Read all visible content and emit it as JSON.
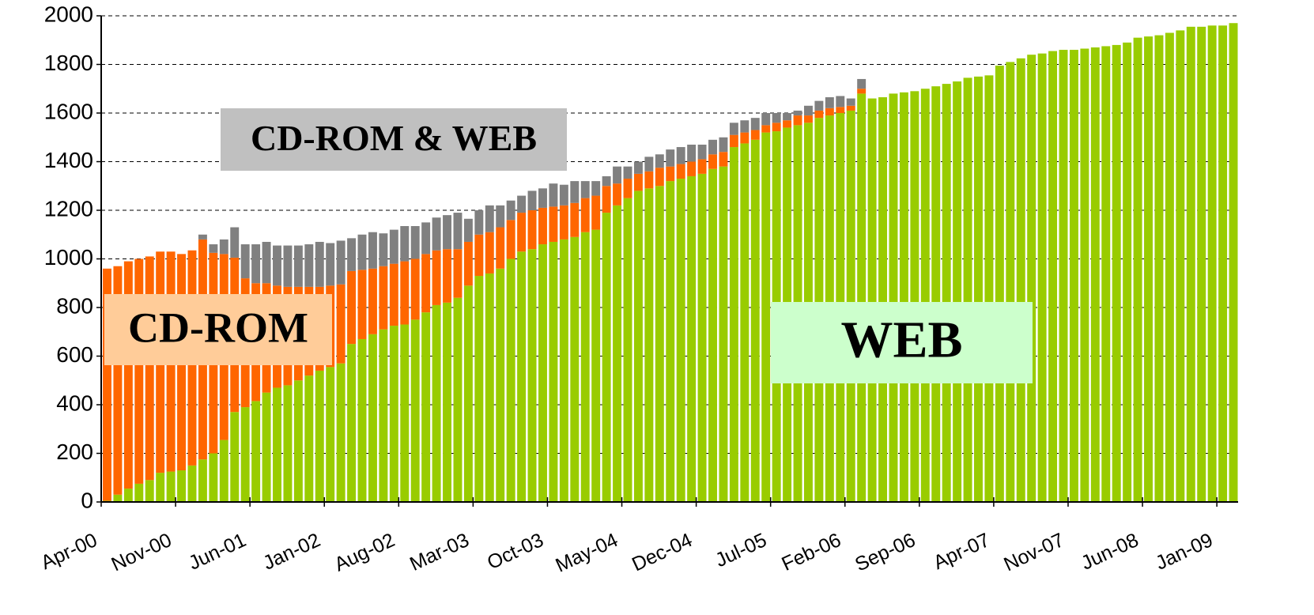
{
  "chart_data": {
    "type": "stacked_bar",
    "categories": [
      "Apr-00",
      null,
      null,
      null,
      null,
      null,
      null,
      "Nov-00",
      null,
      null,
      null,
      null,
      null,
      null,
      "Jun-01",
      null,
      null,
      null,
      null,
      null,
      null,
      "Jan-02",
      null,
      null,
      null,
      null,
      null,
      null,
      "Aug-02",
      null,
      null,
      null,
      null,
      null,
      null,
      "Mar-03",
      null,
      null,
      null,
      null,
      null,
      null,
      "Oct-03",
      null,
      null,
      null,
      null,
      null,
      null,
      "May-04",
      null,
      null,
      null,
      null,
      null,
      null,
      "Dec-04",
      null,
      null,
      null,
      null,
      null,
      null,
      "Jul-05",
      null,
      null,
      null,
      null,
      null,
      null,
      "Feb-06",
      null,
      null,
      null,
      null,
      null,
      null,
      "Sep-06",
      null,
      null,
      null,
      null,
      null,
      null,
      "Apr-07",
      null,
      null,
      null,
      null,
      null,
      null,
      "Nov-07",
      null,
      null,
      null,
      null,
      null,
      null,
      "Jun-08",
      null,
      null,
      null,
      null,
      null,
      null,
      "Jan-09",
      null
    ],
    "series": [
      {
        "name": "WEB",
        "color": "#99cc00",
        "box_color": "#ccffcc",
        "values": [
          5,
          30,
          55,
          75,
          90,
          120,
          125,
          130,
          150,
          175,
          200,
          255,
          370,
          390,
          415,
          450,
          470,
          480,
          500,
          520,
          540,
          555,
          570,
          650,
          670,
          690,
          710,
          725,
          730,
          750,
          780,
          810,
          820,
          840,
          890,
          930,
          940,
          960,
          1000,
          1030,
          1040,
          1060,
          1070,
          1080,
          1090,
          1110,
          1120,
          1190,
          1220,
          1250,
          1280,
          1290,
          1300,
          1320,
          1330,
          1340,
          1350,
          1370,
          1380,
          1460,
          1475,
          1490,
          1520,
          1525,
          1540,
          1550,
          1560,
          1580,
          1590,
          1600,
          1610,
          1680,
          1660,
          1665,
          1680,
          1685,
          1690,
          1700,
          1710,
          1720,
          1730,
          1745,
          1750,
          1755,
          1795,
          1810,
          1825,
          1840,
          1845,
          1855,
          1860,
          1860,
          1865,
          1870,
          1875,
          1880,
          1890,
          1910,
          1915,
          1920,
          1930,
          1940,
          1955,
          1955,
          1960,
          1960,
          1970
        ]
      },
      {
        "name": "CD-ROM",
        "color": "#ff6600",
        "box_color": "#ffcc99",
        "values": [
          955,
          940,
          935,
          925,
          920,
          910,
          905,
          890,
          885,
          905,
          825,
          765,
          635,
          530,
          485,
          450,
          420,
          405,
          385,
          365,
          345,
          335,
          325,
          300,
          285,
          270,
          260,
          255,
          260,
          250,
          240,
          225,
          220,
          200,
          180,
          170,
          170,
          170,
          160,
          160,
          160,
          150,
          145,
          140,
          140,
          140,
          140,
          110,
          90,
          80,
          70,
          70,
          75,
          60,
          60,
          60,
          60,
          60,
          60,
          50,
          45,
          40,
          30,
          35,
          30,
          40,
          30,
          30,
          30,
          25,
          20,
          20,
          0,
          0,
          0,
          0,
          0,
          0,
          0,
          0,
          0,
          0,
          0,
          0,
          0,
          0,
          0,
          0,
          0,
          0,
          0,
          0,
          0,
          0,
          0,
          0,
          0,
          0,
          0,
          0,
          0,
          0,
          0,
          0,
          0,
          0,
          0
        ]
      },
      {
        "name": "CD-ROM & WEB",
        "color": "#808080",
        "box_color": "#c0c0c0",
        "values": [
          0,
          0,
          0,
          0,
          0,
          0,
          0,
          0,
          0,
          20,
          35,
          60,
          125,
          140,
          160,
          170,
          165,
          170,
          170,
          175,
          185,
          175,
          180,
          135,
          145,
          150,
          135,
          140,
          145,
          135,
          130,
          135,
          140,
          150,
          95,
          100,
          110,
          90,
          80,
          70,
          80,
          80,
          95,
          85,
          90,
          70,
          60,
          40,
          70,
          50,
          50,
          60,
          55,
          70,
          70,
          70,
          60,
          60,
          60,
          50,
          50,
          50,
          50,
          40,
          30,
          20,
          40,
          40,
          45,
          45,
          30,
          40,
          0,
          0,
          0,
          0,
          0,
          0,
          0,
          0,
          0,
          0,
          0,
          0,
          0,
          0,
          0,
          0,
          0,
          0,
          0,
          0,
          0,
          0,
          0,
          0,
          0,
          0,
          0,
          0,
          0,
          0,
          0,
          0,
          0,
          0,
          0
        ]
      }
    ],
    "ylim": [
      0,
      2000
    ],
    "yticks": [
      0,
      200,
      400,
      600,
      800,
      1000,
      1200,
      1400,
      1600,
      1800,
      2000
    ],
    "grid": true
  }
}
